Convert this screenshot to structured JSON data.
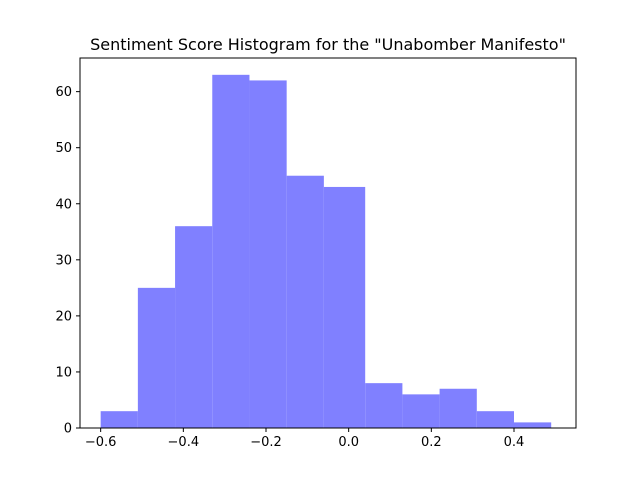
{
  "chart_data": {
    "type": "bar",
    "subtype": "histogram",
    "title": "Sentiment Score Histogram for the \"Unabomber Manifesto\"",
    "xlabel": "",
    "ylabel": "",
    "bin_edges": [
      -0.6,
      -0.51,
      -0.42,
      -0.33,
      -0.24,
      -0.15,
      -0.06,
      0.04,
      0.13,
      0.22,
      0.31,
      0.4,
      0.49
    ],
    "values": [
      3,
      25,
      36,
      63,
      62,
      45,
      43,
      8,
      6,
      7,
      3,
      1
    ],
    "xlim": [
      -0.65,
      0.55
    ],
    "ylim": [
      0,
      66
    ],
    "xticks": [
      -0.6,
      -0.4,
      -0.2,
      0.0,
      0.2,
      0.4
    ],
    "xtick_labels": [
      "−0.6",
      "−0.4",
      "−0.2",
      "0.0",
      "0.2",
      "0.4"
    ],
    "yticks": [
      0,
      10,
      20,
      30,
      40,
      50,
      60
    ],
    "ytick_labels": [
      "0",
      "10",
      "20",
      "30",
      "40",
      "50",
      "60"
    ],
    "bar_color": "#8080ff",
    "grid": false,
    "legend": "none"
  }
}
